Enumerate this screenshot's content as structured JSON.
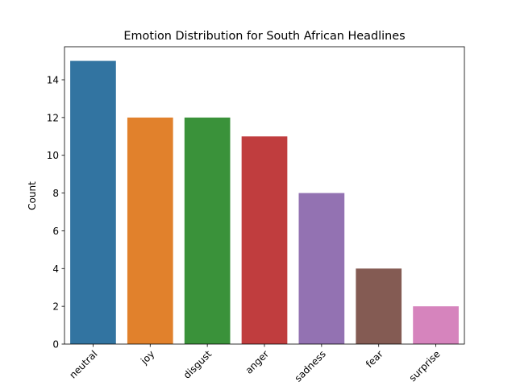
{
  "chart_data": {
    "type": "bar",
    "title": "Emotion Distribution for South African Headlines",
    "xlabel": "",
    "ylabel": "Count",
    "categories": [
      "neutral",
      "joy",
      "disgust",
      "anger",
      "sadness",
      "fear",
      "surprise"
    ],
    "values": [
      15,
      12,
      12,
      11,
      8,
      4,
      2
    ],
    "colors": [
      "#3274a1",
      "#e1812c",
      "#3a923a",
      "#c03d3e",
      "#9372b2",
      "#845b53",
      "#d684bd"
    ],
    "ylim": [
      0,
      15.75
    ],
    "yticks": [
      0,
      2,
      4,
      6,
      8,
      10,
      12,
      14
    ],
    "grid": false,
    "legend": "none"
  }
}
